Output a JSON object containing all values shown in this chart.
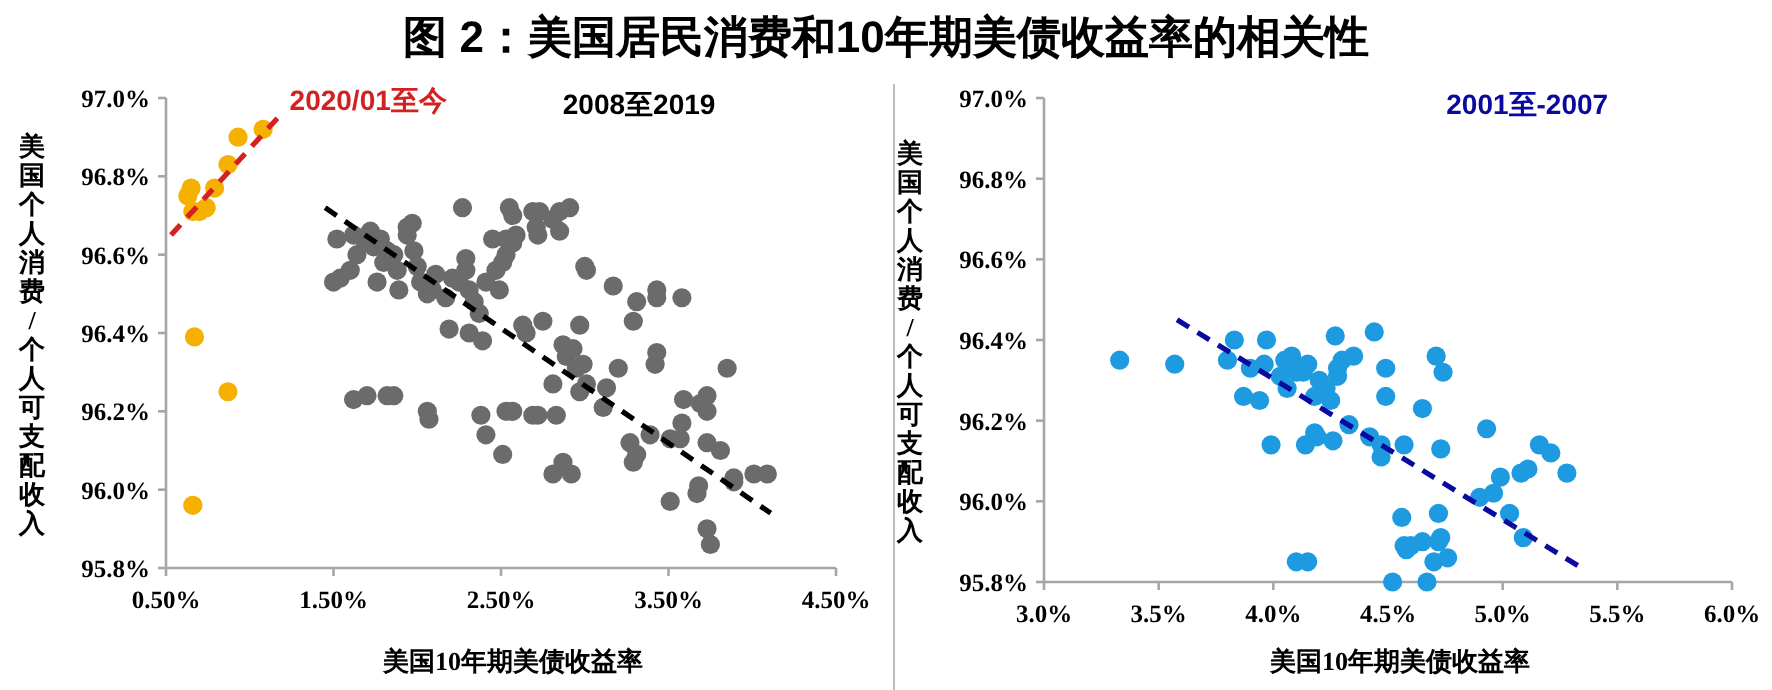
{
  "chart_data": [
    {
      "type": "scatter",
      "title": "图 2：美国居民消费和10年期美债收益率的相关性",
      "xlabel": "美国10年期美债收益率",
      "ylabel": "美国个人消费/个人可支配收入",
      "marker": "circle",
      "xlim": [
        0.5,
        4.5
      ],
      "xticks": [
        {
          "value": 0.5,
          "label": "0.50%"
        },
        {
          "value": 1.5,
          "label": "1.50%"
        },
        {
          "value": 2.5,
          "label": "2.50%"
        },
        {
          "value": 3.5,
          "label": "3.50%"
        },
        {
          "value": 4.5,
          "label": "4.50%"
        }
      ],
      "ylim": [
        95.8,
        97.0
      ],
      "yticks": [
        {
          "value": 95.8,
          "label": "95.8%"
        },
        {
          "value": 96.0,
          "label": "96.0%"
        },
        {
          "value": 96.2,
          "label": "96.2%"
        },
        {
          "value": 96.4,
          "label": "96.4%"
        },
        {
          "value": 96.6,
          "label": "96.6%"
        },
        {
          "value": 96.8,
          "label": "96.8%"
        },
        {
          "value": 97.0,
          "label": "97.0%"
        }
      ],
      "series": [
        {
          "type": "scatter",
          "color": "#f5b000",
          "x": [
            0.63,
            0.65,
            0.66,
            0.7,
            0.74,
            0.79,
            0.87,
            0.93,
            1.08,
            0.67,
            0.87,
            0.66
          ],
          "values": [
            96.75,
            96.77,
            96.71,
            96.71,
            96.72,
            96.77,
            96.83,
            96.9,
            96.92,
            96.39,
            96.25,
            95.96
          ]
        },
        {
          "type": "scatter",
          "color": "#6b6b6b",
          "x": [
            1.52,
            1.5,
            1.54,
            1.6,
            1.62,
            1.69,
            1.64,
            1.72,
            1.74,
            1.78,
            1.8,
            1.76,
            1.82,
            1.86,
            1.88,
            1.89,
            1.94,
            1.97,
            1.94,
            1.98,
            2.0,
            2.02,
            2.06,
            2.09,
            2.11,
            2.17,
            2.21,
            2.25,
            2.29,
            2.31,
            2.29,
            2.34,
            2.37,
            2.41,
            2.45,
            2.47,
            2.49,
            2.51,
            2.53,
            2.57,
            2.55,
            2.57,
            2.59,
            2.53,
            2.63,
            2.65,
            2.69,
            2.72,
            2.81,
            2.85,
            2.73,
            2.71,
            2.85,
            2.91,
            3.0,
            3.01,
            3.17,
            2.97,
            2.87,
            2.89,
            2.93,
            2.95,
            2.99,
            3.01,
            3.13,
            3.11,
            3.2,
            3.29,
            3.31,
            3.43,
            3.43,
            3.58,
            3.42,
            1.62,
            1.7,
            1.82,
            1.86,
            2.06,
            2.07,
            2.38,
            2.41,
            2.53,
            2.57,
            2.69,
            2.72,
            2.83,
            2.51,
            2.81,
            2.87,
            2.92,
            3.29,
            3.27,
            3.31,
            3.39,
            3.51,
            3.59,
            3.58,
            3.69,
            3.73,
            3.73,
            3.73,
            3.81,
            3.67,
            3.68,
            3.89,
            3.89,
            4.01,
            4.09,
            3.73,
            3.75,
            3.85,
            2.27,
            2.81,
            2.97,
            3.43,
            3.51,
            3.57,
            2.19,
            2.31,
            2.39,
            2.75
          ],
          "values": [
            96.64,
            96.53,
            96.54,
            96.56,
            96.65,
            96.63,
            96.6,
            96.66,
            96.62,
            96.64,
            96.58,
            96.53,
            96.61,
            96.6,
            96.56,
            96.51,
            96.67,
            96.68,
            96.65,
            96.61,
            96.57,
            96.53,
            96.5,
            96.51,
            96.55,
            96.49,
            96.54,
            96.53,
            96.56,
            96.51,
            96.59,
            96.48,
            96.45,
            96.53,
            96.64,
            96.56,
            96.51,
            96.58,
            96.6,
            96.63,
            96.72,
            96.7,
            96.65,
            96.64,
            96.42,
            96.4,
            96.71,
            96.65,
            96.69,
            96.66,
            96.71,
            96.67,
            96.71,
            96.72,
            96.57,
            96.56,
            96.52,
            96.42,
            96.37,
            96.34,
            96.36,
            96.31,
            96.32,
            96.27,
            96.26,
            96.21,
            96.31,
            96.43,
            96.48,
            96.51,
            96.49,
            96.49,
            96.32,
            96.23,
            96.24,
            96.24,
            96.24,
            96.2,
            96.18,
            96.19,
            96.14,
            96.2,
            96.2,
            96.19,
            96.19,
            96.19,
            96.09,
            96.04,
            96.07,
            96.04,
            96.07,
            96.12,
            96.09,
            96.14,
            95.97,
            96.23,
            96.17,
            96.22,
            96.24,
            96.2,
            96.12,
            96.1,
            95.99,
            96.01,
            96.03,
            96.02,
            96.04,
            96.04,
            95.9,
            95.86,
            96.31,
            96.72,
            96.27,
            96.25,
            96.35,
            96.13,
            96.13,
            96.41,
            96.4,
            96.38,
            96.43
          ]
        },
        {
          "type": "line",
          "name": "2020/01至今",
          "color": "#d42020",
          "line_style": "dashed",
          "marker": "none",
          "x": [
            0.53,
            1.19
          ],
          "values": [
            96.65,
            96.96
          ]
        },
        {
          "type": "line",
          "name": "2008至2019",
          "color": "#000000",
          "line_style": "dashed",
          "marker": "none",
          "x": [
            1.45,
            4.11
          ],
          "values": [
            96.72,
            95.94
          ]
        }
      ]
    },
    {
      "type": "scatter",
      "xlabel": "美国10年期美债收益率",
      "ylabel": "美国个人消费/个人可支配收入",
      "marker": "circle",
      "xlim": [
        3.0,
        6.0
      ],
      "xticks": [
        {
          "value": 3.0,
          "label": "3.0%"
        },
        {
          "value": 3.5,
          "label": "3.5%"
        },
        {
          "value": 4.0,
          "label": "4.0%"
        },
        {
          "value": 4.5,
          "label": "4.5%"
        },
        {
          "value": 5.0,
          "label": "5.0%"
        },
        {
          "value": 5.5,
          "label": "5.5%"
        },
        {
          "value": 6.0,
          "label": "6.0%"
        }
      ],
      "ylim": [
        95.8,
        97.0
      ],
      "yticks": [
        {
          "value": 95.8,
          "label": "95.8%"
        },
        {
          "value": 96.0,
          "label": "96.0%"
        },
        {
          "value": 96.2,
          "label": "96.2%"
        },
        {
          "value": 96.4,
          "label": "96.4%"
        },
        {
          "value": 96.6,
          "label": "96.6%"
        },
        {
          "value": 96.8,
          "label": "96.8%"
        },
        {
          "value": 97.0,
          "label": "97.0%"
        }
      ],
      "series": [
        {
          "type": "scatter",
          "color": "#1e9be0",
          "x": [
            3.33,
            3.57,
            3.8,
            3.83,
            3.9,
            3.96,
            3.97,
            3.87,
            3.94,
            3.99,
            4.03,
            4.05,
            4.08,
            4.06,
            4.1,
            4.13,
            4.15,
            4.18,
            4.2,
            4.18,
            4.14,
            4.19,
            4.23,
            4.25,
            4.26,
            4.27,
            4.28,
            4.28,
            4.3,
            4.35,
            4.33,
            4.42,
            4.44,
            4.47,
            4.47,
            4.49,
            4.49,
            4.57,
            4.65,
            4.71,
            4.74,
            4.73,
            4.93,
            4.9,
            4.99,
            5.03,
            5.09,
            5.08,
            5.11,
            5.16,
            5.21,
            5.28,
            4.96,
            4.1,
            4.15,
            4.52,
            4.56,
            4.57,
            4.6,
            4.65,
            4.72,
            4.73,
            4.72,
            4.7,
            4.76,
            4.67,
            4.58
          ],
          "values": [
            96.35,
            96.34,
            96.35,
            96.4,
            96.33,
            96.34,
            96.4,
            96.26,
            96.25,
            96.14,
            96.31,
            96.35,
            96.36,
            96.28,
            96.32,
            96.32,
            96.34,
            96.26,
            96.3,
            96.17,
            96.14,
            96.16,
            96.28,
            96.25,
            96.15,
            96.41,
            96.33,
            96.31,
            96.35,
            96.36,
            96.19,
            96.16,
            96.42,
            96.14,
            96.11,
            96.33,
            96.26,
            96.14,
            96.23,
            96.36,
            96.32,
            96.13,
            96.18,
            96.01,
            96.06,
            95.97,
            95.91,
            96.07,
            96.08,
            96.14,
            96.12,
            96.07,
            96.02,
            95.85,
            95.85,
            95.8,
            95.96,
            95.89,
            95.89,
            95.9,
            95.97,
            95.91,
            95.9,
            95.85,
            95.86,
            95.8,
            95.88
          ]
        },
        {
          "type": "line",
          "name": "2001至-2007",
          "color": "#0a0aa0",
          "line_style": "dashed",
          "marker": "none",
          "x": [
            3.58,
            5.33
          ],
          "values": [
            96.45,
            95.84
          ]
        }
      ]
    }
  ]
}
